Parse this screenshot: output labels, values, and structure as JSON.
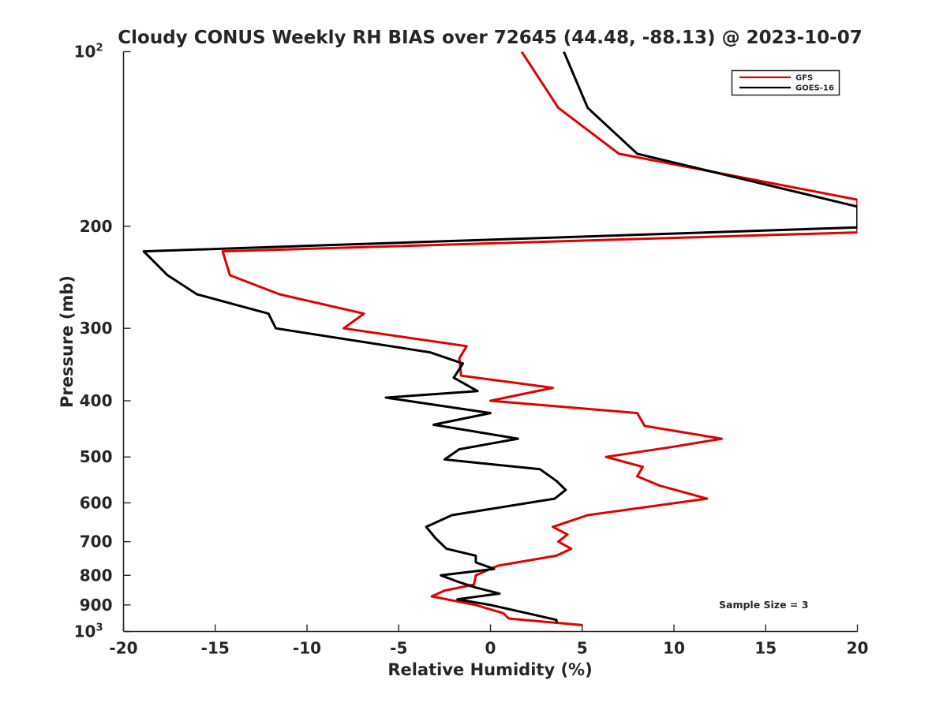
{
  "chart_data": {
    "type": "line",
    "title": "Cloudy CONUS Weekly RH BIAS over 72645 (44.48, -88.13) @ 2023-10-07",
    "xlabel": "Relative Humidity (%)",
    "ylabel": "Pressure (mb)",
    "xlim": [
      -20,
      20
    ],
    "ylim": [
      100,
      1000
    ],
    "y_scale": "log",
    "y_reversed": true,
    "grid": false,
    "legend_position": "top-right",
    "annotation": "Sample Size = 3",
    "x_ticks": [
      "-20",
      "-15",
      "-10",
      "-5",
      "0",
      "5",
      "10",
      "15",
      "20"
    ],
    "y_ticks": [
      {
        "value": 100,
        "base": "10",
        "exp": "2"
      },
      {
        "value": 200,
        "label": "200"
      },
      {
        "value": 300,
        "label": "300"
      },
      {
        "value": 400,
        "label": "400"
      },
      {
        "value": 500,
        "label": "500"
      },
      {
        "value": 600,
        "label": "600"
      },
      {
        "value": 700,
        "label": "700"
      },
      {
        "value": 800,
        "label": "800"
      },
      {
        "value": 900,
        "label": "900"
      },
      {
        "value": 1000,
        "base": "10",
        "exp": "3"
      }
    ],
    "series": [
      {
        "name": "GFS",
        "color": "#e00000",
        "points": [
          [
            1.7,
            100
          ],
          [
            3.7,
            125
          ],
          [
            7.0,
            150
          ],
          [
            20.0,
            180
          ],
          [
            20.0,
            205
          ],
          [
            -14.6,
            221
          ],
          [
            -14.2,
            243
          ],
          [
            -11.5,
            262
          ],
          [
            -6.9,
            283
          ],
          [
            -8.0,
            300
          ],
          [
            -1.3,
            322
          ],
          [
            -1.7,
            338
          ],
          [
            -1.6,
            362
          ],
          [
            3.4,
            380
          ],
          [
            0.0,
            400
          ],
          [
            8.0,
            420
          ],
          [
            8.4,
            442
          ],
          [
            12.6,
            465
          ],
          [
            10.0,
            480
          ],
          [
            6.3,
            500
          ],
          [
            8.3,
            520
          ],
          [
            8.0,
            540
          ],
          [
            9.2,
            560
          ],
          [
            11.8,
            590
          ],
          [
            5.3,
            630
          ],
          [
            3.4,
            660
          ],
          [
            4.2,
            680
          ],
          [
            3.7,
            700
          ],
          [
            4.4,
            720
          ],
          [
            3.6,
            740
          ],
          [
            0.4,
            770
          ],
          [
            -0.8,
            800
          ],
          [
            -0.9,
            830
          ],
          [
            -2.5,
            850
          ],
          [
            -3.2,
            870
          ],
          [
            -0.8,
            900
          ],
          [
            0.7,
            930
          ],
          [
            1.0,
            950
          ],
          [
            5.0,
            975
          ]
        ]
      },
      {
        "name": "GOES-16",
        "color": "#000000",
        "points": [
          [
            4.0,
            100
          ],
          [
            5.3,
            125
          ],
          [
            8.0,
            150
          ],
          [
            20.0,
            185
          ],
          [
            20.0,
            201
          ],
          [
            -18.9,
            221
          ],
          [
            -17.6,
            243
          ],
          [
            -16.0,
            262
          ],
          [
            -12.1,
            283
          ],
          [
            -11.7,
            300
          ],
          [
            -3.3,
            330
          ],
          [
            -1.5,
            345
          ],
          [
            -2.0,
            365
          ],
          [
            -0.7,
            385
          ],
          [
            -5.7,
            395
          ],
          [
            0.0,
            420
          ],
          [
            -3.1,
            440
          ],
          [
            1.5,
            465
          ],
          [
            -1.7,
            485
          ],
          [
            -2.5,
            505
          ],
          [
            2.7,
            525
          ],
          [
            3.6,
            550
          ],
          [
            4.1,
            570
          ],
          [
            3.5,
            590
          ],
          [
            -2.1,
            630
          ],
          [
            -3.5,
            660
          ],
          [
            -3.0,
            690
          ],
          [
            -2.4,
            720
          ],
          [
            -0.8,
            740
          ],
          [
            -0.8,
            760
          ],
          [
            0.2,
            780
          ],
          [
            -2.7,
            800
          ],
          [
            -1.8,
            820
          ],
          [
            -0.8,
            840
          ],
          [
            0.5,
            860
          ],
          [
            -1.8,
            880
          ],
          [
            0.0,
            900
          ],
          [
            2.0,
            930
          ],
          [
            3.6,
            955
          ],
          [
            3.6,
            965
          ]
        ]
      }
    ]
  }
}
